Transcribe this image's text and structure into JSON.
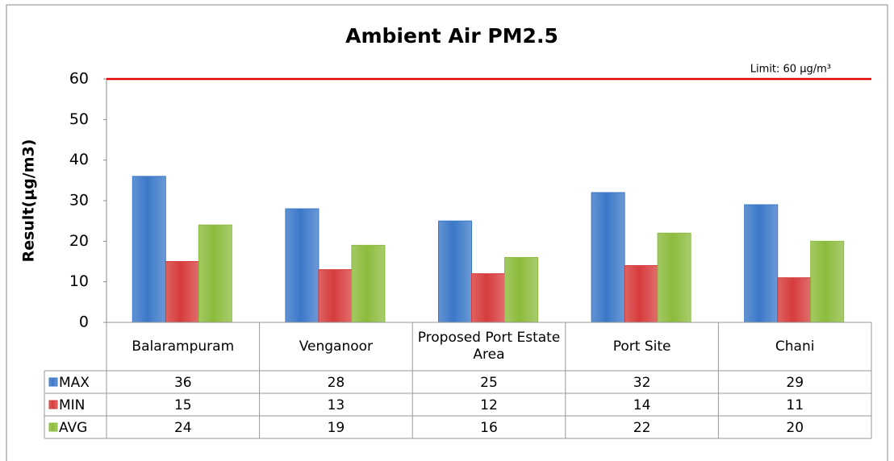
{
  "chart_data": {
    "type": "bar",
    "title": "Ambient Air PM2.5",
    "y_label": "Result(μg/m3)",
    "categories": [
      "Balarampuram",
      "Venganoor",
      "Proposed Port Estate Area",
      "Port Site",
      "Chani"
    ],
    "series": [
      {
        "name": "MAX",
        "color": "#3b78c8",
        "values": [
          36,
          28,
          25,
          32,
          29
        ]
      },
      {
        "name": "MIN",
        "color": "#d63c3c",
        "values": [
          15,
          13,
          12,
          14,
          11
        ]
      },
      {
        "name": "AVG",
        "color": "#8cbb3c",
        "values": [
          24,
          19,
          16,
          22,
          20
        ]
      }
    ],
    "limit": {
      "value": 60,
      "label": "Limit: 60 μg/m³",
      "color": "#e00000"
    },
    "ylim": [
      0,
      60
    ],
    "yticks": [
      0,
      10,
      20,
      30,
      40,
      50,
      60
    ],
    "grid": false,
    "data_table": true
  }
}
